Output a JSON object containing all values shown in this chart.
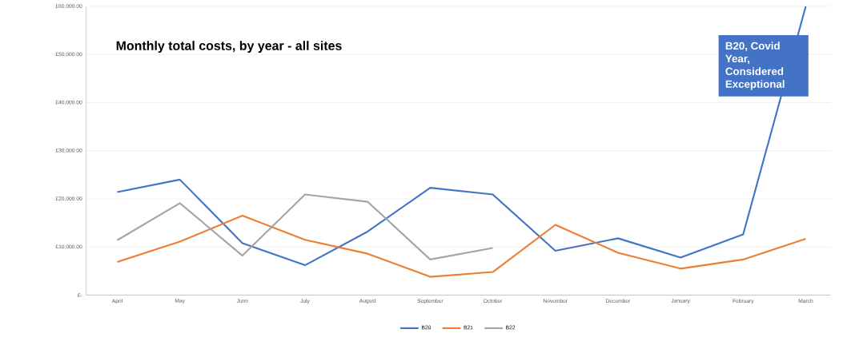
{
  "chart_data": {
    "type": "line",
    "title": "Monthly total costs, by year - all sites",
    "categories": [
      "April",
      "May",
      "June",
      "July",
      "August",
      "September",
      "October",
      "November",
      "December",
      "January",
      "February",
      "March"
    ],
    "series": [
      {
        "name": "B20",
        "color": "#4472c4",
        "values": [
          21400,
          24000,
          10800,
          6200,
          13200,
          22300,
          20900,
          9200,
          11800,
          7800,
          12600,
          60000
        ]
      },
      {
        "name": "B21",
        "color": "#ed7d31",
        "values": [
          6900,
          11100,
          16500,
          11500,
          8600,
          3800,
          4800,
          14600,
          8800,
          5500,
          7400,
          11700
        ]
      },
      {
        "name": "B22",
        "color": "#a5a5a5",
        "values": [
          11400,
          19100,
          8200,
          20900,
          19400,
          7400,
          9800,
          null,
          null,
          null,
          null,
          null
        ]
      }
    ],
    "ylim": [
      0,
      60000
    ],
    "yticks": [
      {
        "value": 0,
        "label": "£-"
      },
      {
        "value": 10000,
        "label": "£10,000.00"
      },
      {
        "value": 20000,
        "label": "£20,000.00"
      },
      {
        "value": 30000,
        "label": "£30,000.00"
      },
      {
        "value": 40000,
        "label": "£40,000.00"
      },
      {
        "value": 50000,
        "label": "£50,000.00"
      },
      {
        "value": 60000,
        "label": "£60,000.00"
      }
    ],
    "annotations": [
      "B20, Covid Year, Considered Exceptional"
    ],
    "grid": "y",
    "legend": "bottom",
    "marker": "none",
    "line_style": "solid"
  }
}
